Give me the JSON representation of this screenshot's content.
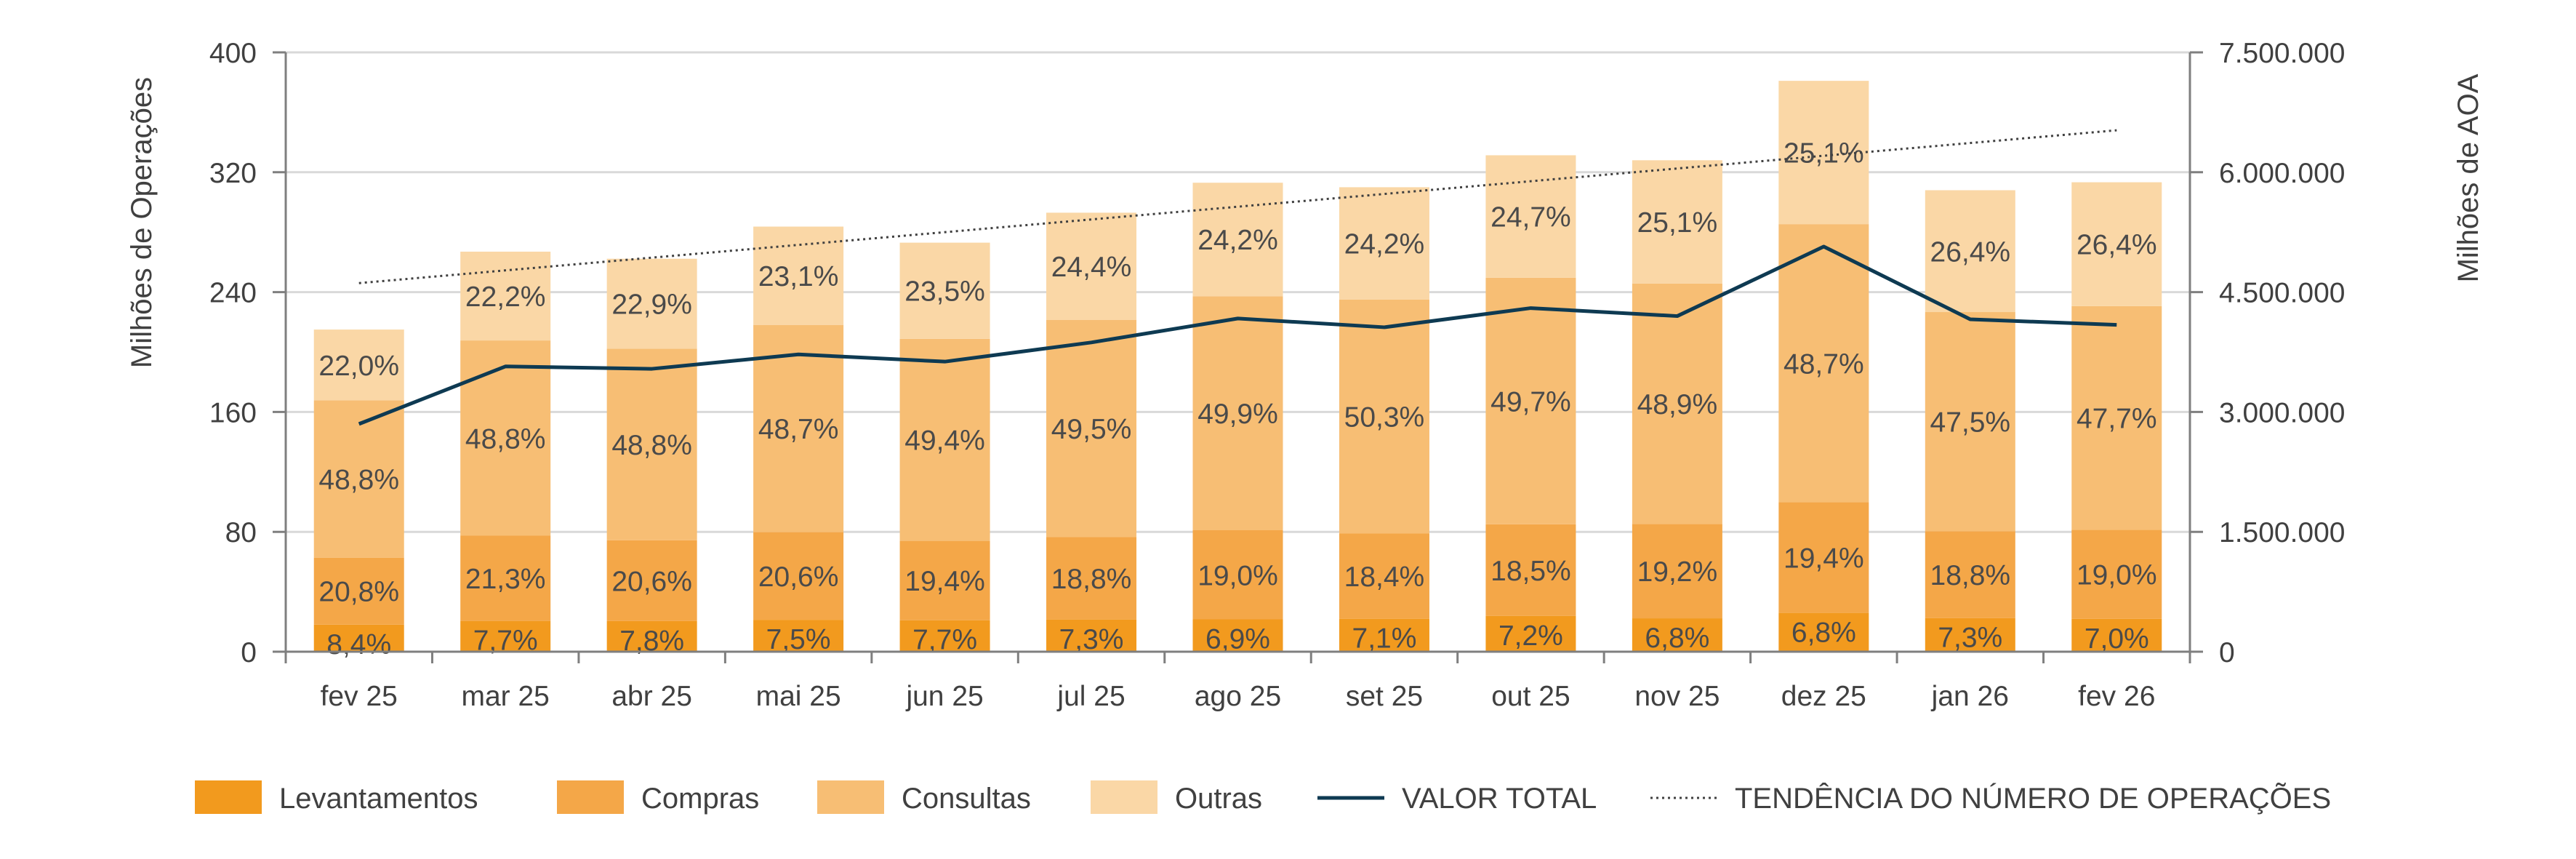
{
  "chart_data": {
    "type": "bar",
    "stacked": true,
    "categories": [
      "fev 25",
      "mar 25",
      "abr 25",
      "mai 25",
      "jun 25",
      "jul 25",
      "ago 25",
      "set 25",
      "out 25",
      "nov 25",
      "dez 25",
      "jan 26",
      "fev 26"
    ],
    "y_left": {
      "label": "Milhões de Operações",
      "ylim": [
        0,
        400
      ],
      "ticks": [
        0,
        80,
        160,
        240,
        320,
        400
      ],
      "tick_labels": [
        "0",
        "80",
        "160",
        "240",
        "320",
        "400"
      ]
    },
    "y_right": {
      "label": "Milhões de AOA",
      "ylim": [
        0,
        7500000
      ],
      "ticks": [
        0,
        1500000,
        3000000,
        4500000,
        6000000,
        7500000
      ],
      "tick_labels": [
        "0",
        "1.500.000",
        "3.000.000",
        "4.500.000",
        "6.000.000",
        "7.500.000"
      ]
    },
    "totals": [
      215,
      267,
      262,
      284,
      273,
      293,
      313,
      310,
      331,
      328,
      381,
      308,
      313
    ],
    "series": [
      {
        "name": "Levantamentos",
        "color": "#F29A1E",
        "percent": [
          8.4,
          7.7,
          7.8,
          7.5,
          7.7,
          7.3,
          6.9,
          7.1,
          7.2,
          6.8,
          6.8,
          7.3,
          7.0
        ],
        "labels": [
          "8,4%",
          "7,7%",
          "7,8%",
          "7,5%",
          "7,7%",
          "7,3%",
          "6,9%",
          "7,1%",
          "7,2%",
          "6,8%",
          "6,8%",
          "7,3%",
          "7,0%"
        ]
      },
      {
        "name": "Compras",
        "color": "#F4A748",
        "percent": [
          20.8,
          21.3,
          20.6,
          20.6,
          19.4,
          18.8,
          19.0,
          18.4,
          18.5,
          19.2,
          19.4,
          18.8,
          19.0
        ],
        "labels": [
          "20,8%",
          "21,3%",
          "20,6%",
          "20,6%",
          "19,4%",
          "18,8%",
          "19,0%",
          "18,4%",
          "18,5%",
          "19,2%",
          "19,4%",
          "18,8%",
          "19,0%"
        ]
      },
      {
        "name": "Consultas",
        "color": "#F7BE74",
        "percent": [
          48.8,
          48.8,
          48.8,
          48.7,
          49.4,
          49.5,
          49.9,
          50.3,
          49.7,
          48.9,
          48.7,
          47.5,
          47.7
        ],
        "labels": [
          "48,8%",
          "48,8%",
          "48,8%",
          "48,7%",
          "49,4%",
          "49,5%",
          "49,9%",
          "50,3%",
          "49,7%",
          "48,9%",
          "48,7%",
          "47,5%",
          "47,7%"
        ]
      },
      {
        "name": "Outras",
        "color": "#FAD7A6",
        "percent": [
          22.0,
          22.2,
          22.9,
          23.1,
          23.5,
          24.4,
          24.2,
          24.2,
          24.7,
          25.1,
          25.1,
          26.4,
          26.4
        ],
        "labels": [
          "22,0%",
          "22,2%",
          "22,9%",
          "23,1%",
          "23,5%",
          "24,4%",
          "24,2%",
          "24,2%",
          "24,7%",
          "25,1%",
          "25,1%",
          "26,4%",
          "26,4%"
        ]
      }
    ],
    "line_series": {
      "name": "VALOR TOTAL",
      "axis": "right",
      "color": "#0E3A52",
      "values": [
        2850000,
        3570000,
        3540000,
        3720000,
        3630000,
        3870000,
        4170000,
        4060000,
        4300000,
        4200000,
        5070000,
        4160000,
        4090000
      ]
    },
    "trend": {
      "name": "TENDÊNCIA DO NÚMERO DE OPERAÇÕES",
      "axis": "left",
      "color": "#404040",
      "start": 246,
      "end": 348
    },
    "grid": true,
    "legend_position": "bottom"
  },
  "legend": [
    {
      "label": "Levantamentos",
      "kind": "box",
      "color": "#F29A1E"
    },
    {
      "label": "Compras",
      "kind": "box",
      "color": "#F4A748"
    },
    {
      "label": "Consultas",
      "kind": "box",
      "color": "#F7BE74"
    },
    {
      "label": "Outras",
      "kind": "box",
      "color": "#FAD7A6"
    },
    {
      "label": "VALOR TOTAL",
      "kind": "line",
      "color": "#0E3A52"
    },
    {
      "label": "TENDÊNCIA DO NÚMERO DE OPERAÇÕES",
      "kind": "dotted",
      "color": "#404040"
    }
  ]
}
